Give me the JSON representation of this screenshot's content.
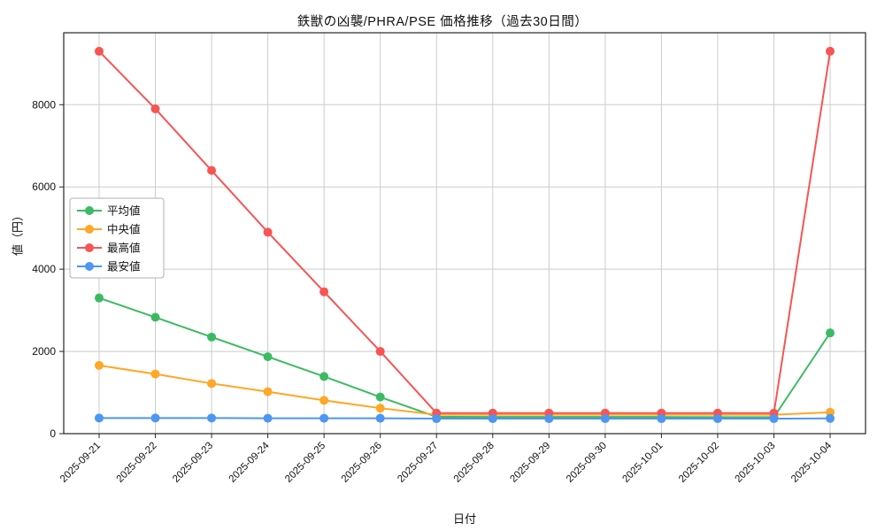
{
  "chart": {
    "title": "鉄獣の凶襲/PHRA/PSE 価格推移（過去30日間）",
    "xlabel": "日付",
    "ylabel": "値（円）"
  },
  "chart_data": {
    "type": "line",
    "title": "鉄獣の凶襲/PHRA/PSE 価格推移（過去30日間）",
    "xlabel": "日付",
    "ylabel": "値（円）",
    "x": [
      "2025-09-21",
      "2025-09-22",
      "2025-09-23",
      "2025-09-24",
      "2025-09-25",
      "2025-09-26",
      "2025-09-27",
      "2025-09-28",
      "2025-09-29",
      "2025-09-30",
      "2025-10-01",
      "2025-10-02",
      "2025-10-03",
      "2025-10-04"
    ],
    "series": [
      {
        "name": "平均値",
        "color": "#3cba63",
        "values": [
          3300,
          2830,
          2350,
          1870,
          1390,
          890,
          410,
          405,
          405,
          405,
          405,
          400,
          400,
          2450
        ]
      },
      {
        "name": "中央値",
        "color": "#ffa726",
        "values": [
          1660,
          1450,
          1220,
          1020,
          810,
          620,
          460,
          460,
          460,
          460,
          460,
          460,
          460,
          520
        ]
      },
      {
        "name": "最高値",
        "color": "#f85454",
        "values": [
          9300,
          7900,
          6400,
          4900,
          3450,
          2000,
          500,
          500,
          500,
          500,
          500,
          500,
          500,
          9300
        ]
      },
      {
        "name": "最安値",
        "color": "#4d96f2",
        "values": [
          380,
          380,
          380,
          375,
          375,
          375,
          365,
          365,
          365,
          365,
          365,
          365,
          365,
          370
        ]
      }
    ],
    "ylim": [
      0,
      9750
    ],
    "yticks": [
      0,
      2000,
      4000,
      6000,
      8000
    ],
    "grid": true,
    "legend_position": "center left",
    "grid_color": "#cccccc",
    "axis_color": "#262626"
  }
}
